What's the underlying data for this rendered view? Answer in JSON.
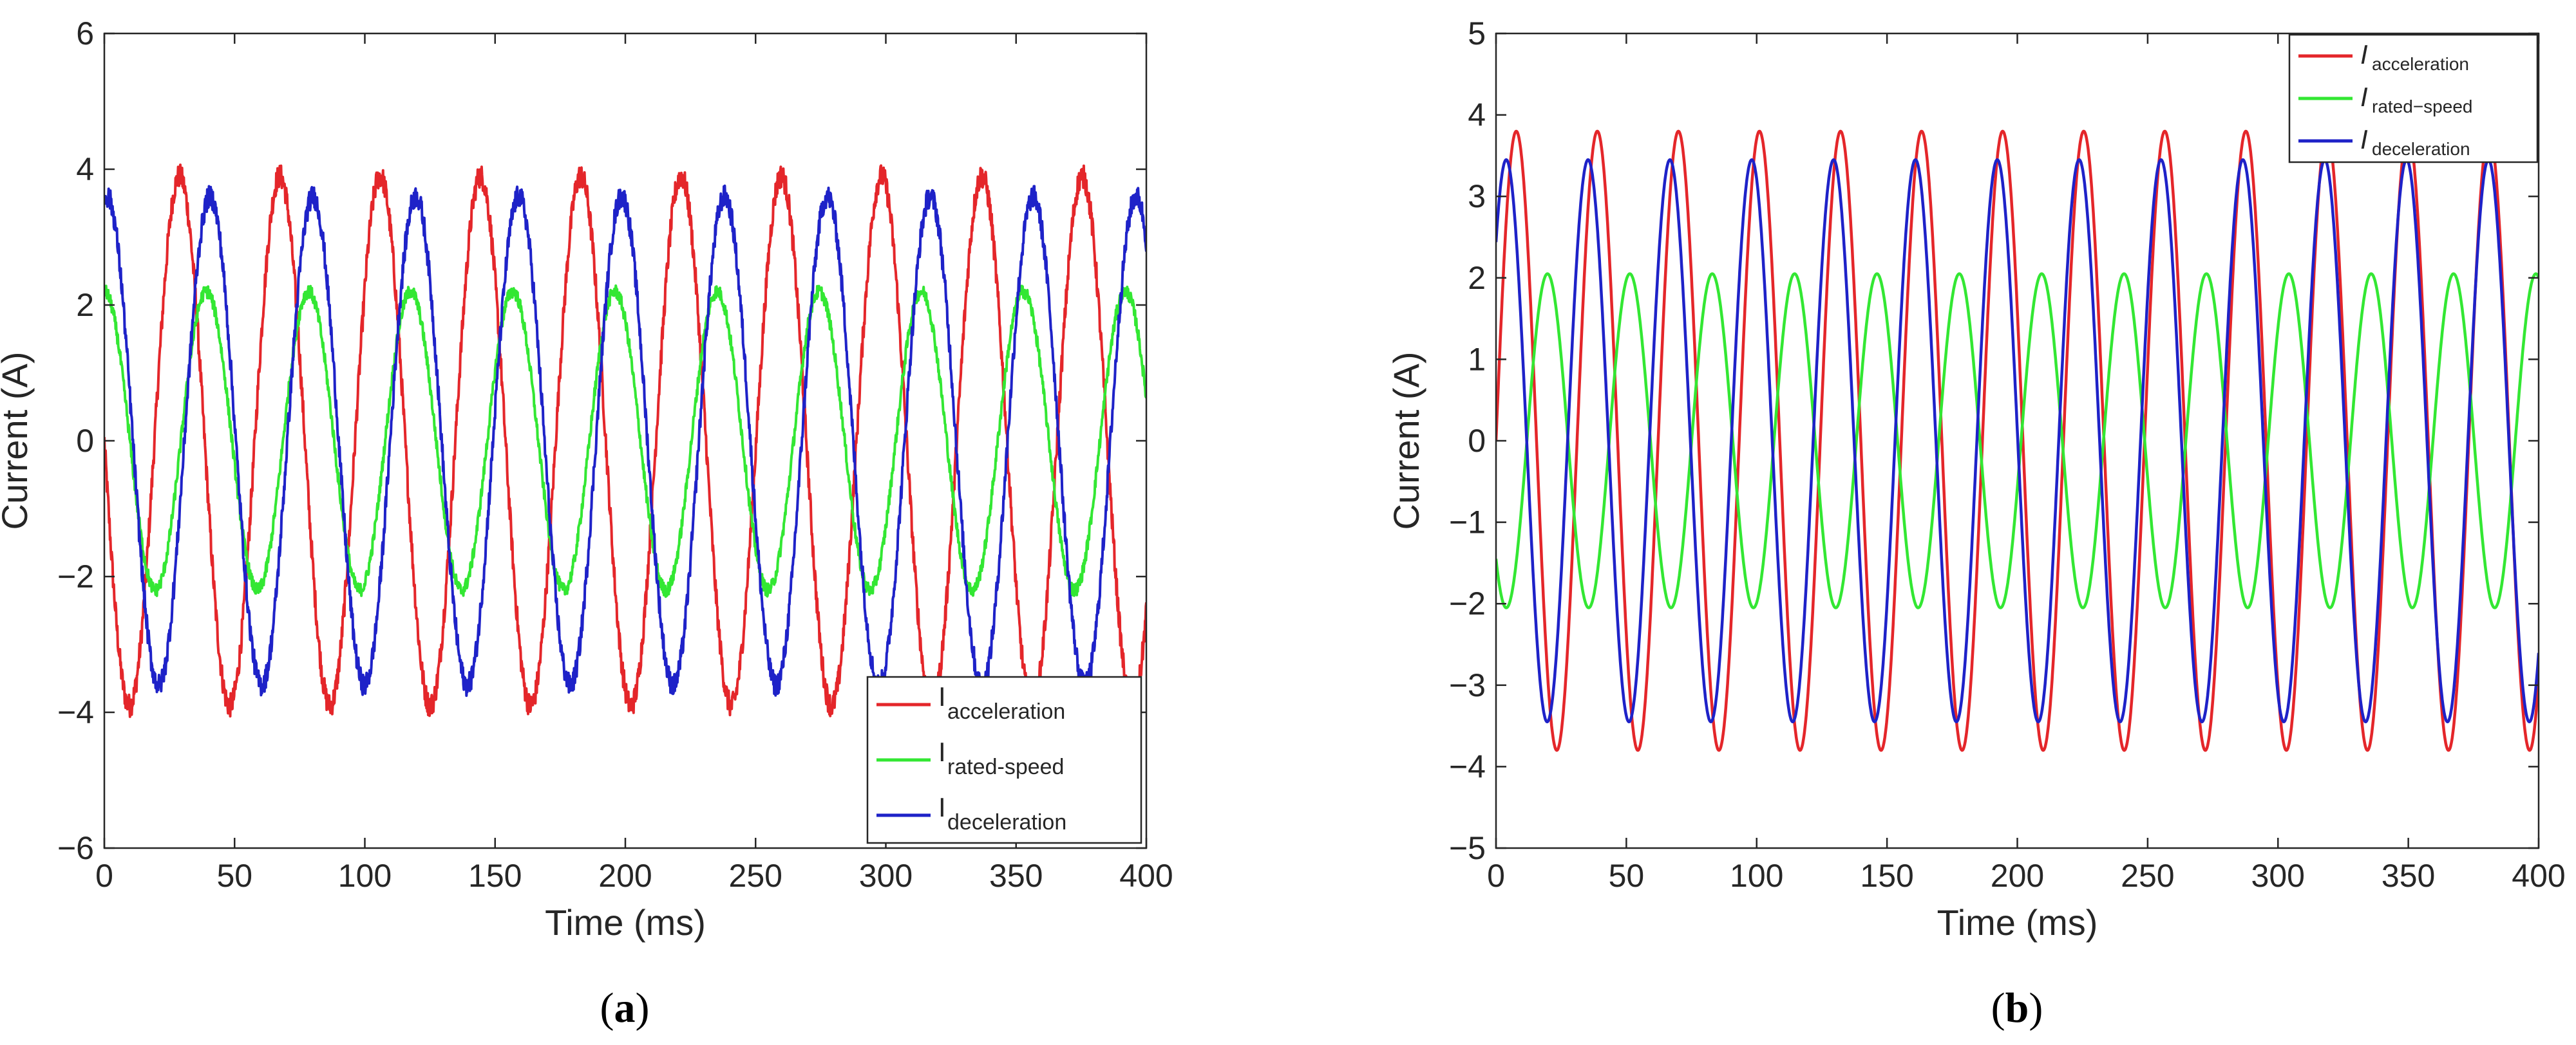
{
  "chart_data": [
    {
      "id": "a",
      "type": "line",
      "caption_letter": "a",
      "xlabel": "Time (ms)",
      "ylabel": "Current (A)",
      "xlim": [
        0,
        400
      ],
      "ylim": [
        -6,
        6
      ],
      "xticks": [
        "0",
        "50",
        "100",
        "150",
        "200",
        "250",
        "300",
        "350",
        "400"
      ],
      "yticks": [
        "6",
        "4",
        "2",
        "0",
        "−2",
        "−4",
        "−6"
      ],
      "grid": false,
      "legend_position": "bottom-right",
      "noisy": true,
      "legend_style": "plain",
      "series": [
        {
          "name": "acceleration",
          "legend_main": "I",
          "legend_sub": "acceleration",
          "color": "#e4262a",
          "amplitude": 3.9,
          "period_ms": 38.5,
          "phase_deg": 180
        },
        {
          "name": "rated-speed",
          "legend_main": "I",
          "legend_sub": "rated-speed",
          "color": "#33e733",
          "amplitude": 2.2,
          "period_ms": 39.2,
          "phase_deg": 90
        },
        {
          "name": "deceleration",
          "legend_main": "I",
          "legend_sub": "deceleration",
          "color": "#1e22c8",
          "amplitude": 3.6,
          "period_ms": 39.5,
          "phase_deg": 80
        }
      ]
    },
    {
      "id": "b",
      "type": "line",
      "caption_letter": "b",
      "xlabel": "Time (ms)",
      "ylabel": "Current (A)",
      "xlim": [
        0,
        400
      ],
      "ylim": [
        -5,
        5
      ],
      "xticks": [
        "0",
        "50",
        "100",
        "150",
        "200",
        "250",
        "300",
        "350",
        "400"
      ],
      "yticks": [
        "5",
        "4",
        "3",
        "2",
        "1",
        "0",
        "−1",
        "−2",
        "−3",
        "−4",
        "−5"
      ],
      "grid": false,
      "legend_position": "top-right",
      "noisy": false,
      "legend_style": "italic",
      "series": [
        {
          "name": "acceleration",
          "legend_main": "I",
          "legend_sub": "acceleration",
          "color": "#e4262a",
          "amplitude": 3.8,
          "period_ms": 31.1,
          "phase_deg": 0
        },
        {
          "name": "rated-speed",
          "legend_main": "I",
          "legend_sub": "rated−speed",
          "color": "#33e733",
          "amplitude": 2.05,
          "period_ms": 31.6,
          "phase_deg": 225
        },
        {
          "name": "deceleration",
          "legend_main": "I",
          "legend_sub": "deceleration",
          "color": "#1e22c8",
          "amplitude": 3.45,
          "period_ms": 31.4,
          "phase_deg": 45
        }
      ]
    }
  ]
}
